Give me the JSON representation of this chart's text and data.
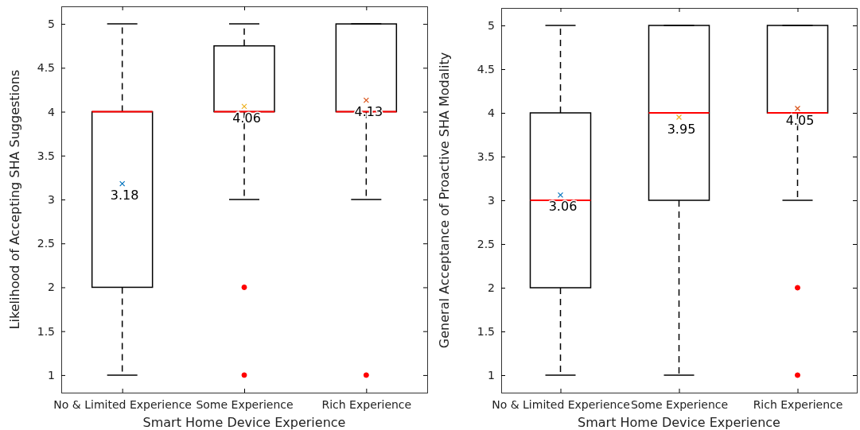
{
  "chart_data": [
    {
      "type": "box",
      "xlabel": "Smart Home Device Experience",
      "ylabel": "Likelihood of Accepting SHA Suggestions",
      "categories": [
        "No & Limited Experience",
        "Some Experience",
        "Rich Experience"
      ],
      "ylim": [
        0.8,
        5.2
      ],
      "yticks": [
        1,
        1.5,
        2,
        2.5,
        3,
        3.5,
        4,
        4.5,
        5
      ],
      "grid": false,
      "boxes": [
        {
          "low": 1,
          "q1": 2,
          "median": 4,
          "q3": 4,
          "high": 5
        },
        {
          "low": 3,
          "q1": 4,
          "median": 4,
          "q3": 4.75,
          "high": 5,
          "outliers": [
            2,
            1
          ]
        },
        {
          "low": 3,
          "q1": 4,
          "median": 4,
          "q3": 5,
          "high": 5,
          "outliers": [
            1
          ]
        }
      ],
      "series": [
        {
          "type": "scatter",
          "marker": "cross",
          "x": [
            "No & Limited Experience",
            "Some Experience",
            "Rich Experience"
          ],
          "values": [
            3.18,
            4.06,
            4.13
          ],
          "colors": [
            "#0072bd",
            "#edb120",
            "#d95319"
          ],
          "data_labels": true
        }
      ]
    },
    {
      "type": "box",
      "xlabel": "Smart Home Device Experience",
      "ylabel": "General Acceptance of Proactive SHA Modality",
      "categories": [
        "No & Limited Experience",
        "Some Experience",
        "Rich Experience"
      ],
      "ylim": [
        0.8,
        5.2
      ],
      "yticks": [
        1,
        1.5,
        2,
        2.5,
        3,
        3.5,
        4,
        4.5,
        5
      ],
      "grid": false,
      "boxes": [
        {
          "low": 1,
          "q1": 2,
          "median": 3,
          "q3": 4,
          "high": 5
        },
        {
          "low": 1,
          "q1": 3,
          "median": 4,
          "q3": 5,
          "high": 5
        },
        {
          "low": 3,
          "q1": 4,
          "median": 4,
          "q3": 5,
          "high": 5,
          "outliers": [
            2,
            1
          ]
        }
      ],
      "series": [
        {
          "type": "scatter",
          "marker": "cross",
          "x": [
            "No & Limited Experience",
            "Some Experience",
            "Rich Experience"
          ],
          "values": [
            3.06,
            3.95,
            4.05
          ],
          "colors": [
            "#0072bd",
            "#edb120",
            "#d95319"
          ],
          "data_labels": true
        }
      ]
    }
  ]
}
